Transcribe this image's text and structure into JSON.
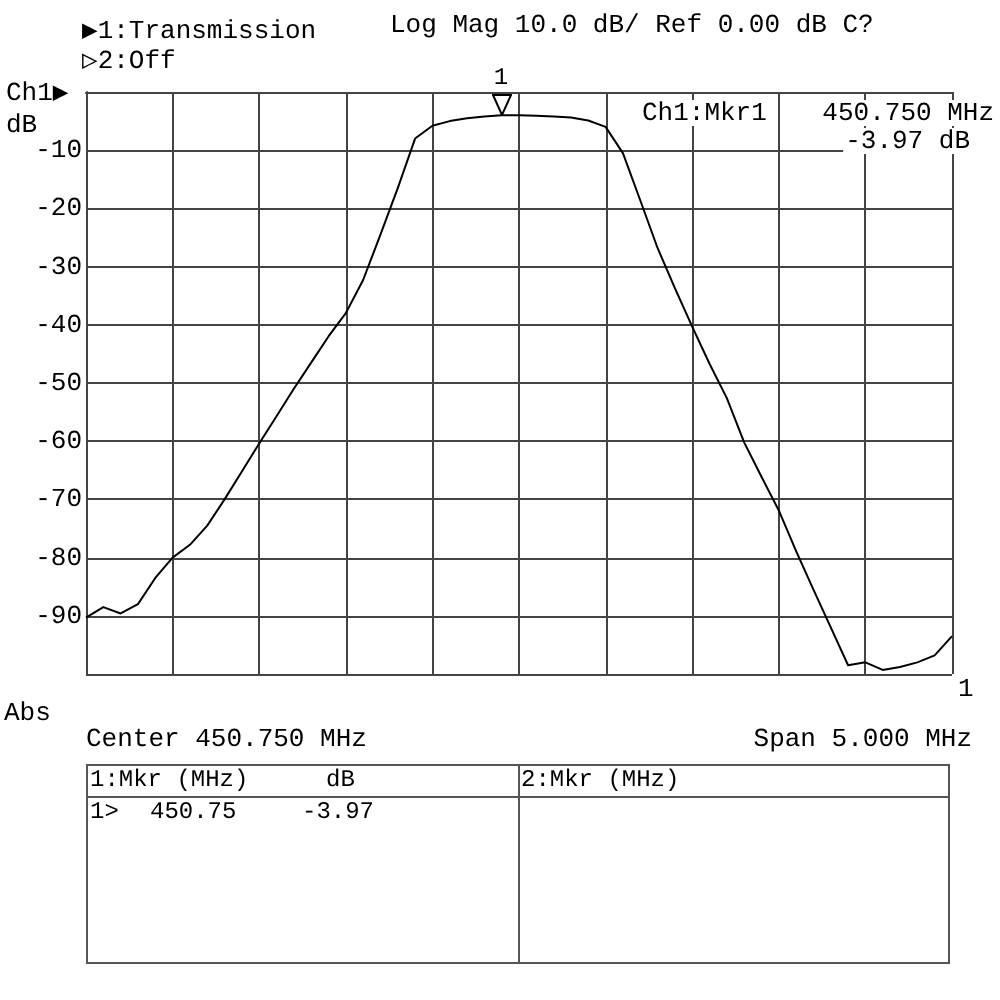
{
  "chart_data": {
    "type": "line",
    "title": "▶1:Transmission",
    "subtitle": "▷2:Off",
    "categories": [
      null,
      null,
      null,
      null,
      null,
      null,
      null,
      null,
      null,
      null,
      null,
      null,
      null,
      null,
      null,
      null,
      null,
      null,
      null,
      null,
      null,
      null,
      null,
      null,
      null,
      null,
      null,
      null,
      null,
      null,
      null,
      null,
      null,
      null,
      null,
      null,
      null,
      null,
      null,
      null,
      null,
      null,
      null,
      null,
      null,
      null,
      null,
      null,
      null,
      null,
      null
    ],
    "series": [
      {
        "color": "#000000",
        "values": [
          -90.3,
          -88.5,
          -89.6,
          -88.0,
          -83.5,
          -80.0,
          -77.8,
          -74.5,
          -70.0,
          -65.2,
          -60.4,
          -55.7,
          -51.0,
          -46.5,
          -42.0,
          -38.0,
          -32.3,
          -24.5,
          -16.5,
          -8.0,
          -5.8,
          -5.0,
          -4.5,
          -4.2,
          -4.0,
          -4.0,
          -4.1,
          -4.2,
          -4.4,
          -4.9,
          -6.0,
          -10.5,
          -18.6,
          -26.8,
          -33.7,
          -40.3,
          -46.7,
          -52.6,
          -60.2,
          -66.1,
          -71.9,
          -78.9,
          -85.5,
          -92.0,
          -98.5,
          -98.0,
          -99.3,
          -98.8,
          -98.0,
          -96.8,
          -93.5
        ]
      }
    ],
    "ylim": [
      -100,
      0
    ],
    "yticks": [
      {
        "value": -100,
        "label": null
      },
      -90,
      -80,
      -70,
      -60,
      -50,
      -40,
      -30,
      -20,
      -10,
      {
        "value": 0,
        "label": null
      }
    ],
    "grid": true,
    "line_style": "solid",
    "tick_labels": "y",
    "annotations": [
      "Log Mag 10.0 dB/ Ref 0.00 dB C?",
      "Ch1▶",
      "dB",
      "Abs",
      "Center 450.750 MHz",
      "Span 5.000 MHz",
      "Ch1:Mkr1",
      "450.750 MHz",
      "-3.97 dB",
      "1",
      "1",
      "1:Mkr (MHz)",
      "dB",
      "1>",
      "450.75",
      "-3.97",
      "2:Mkr (MHz)"
    ]
  }
}
